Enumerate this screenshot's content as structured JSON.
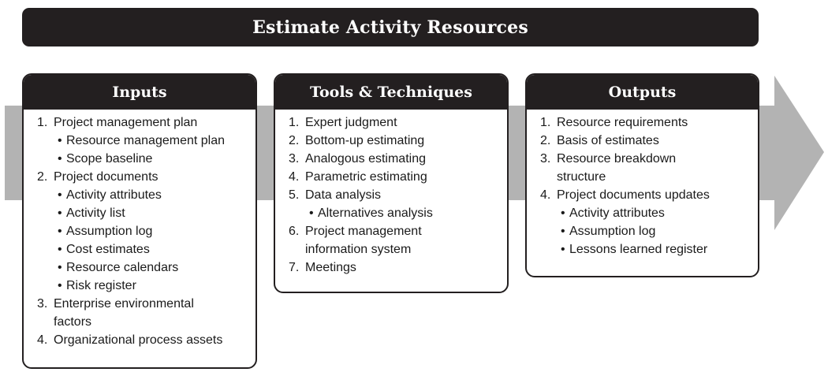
{
  "title": "Estimate Activity Resources",
  "colors": {
    "header_fill": "#231f20",
    "flow_arrow": "#b3b3b3",
    "box_fill": "#ffffff",
    "text": "#1a1a1a"
  },
  "inputs": {
    "title": "Inputs",
    "items": [
      {
        "num": "1.",
        "text": "Project management plan"
      },
      {
        "num": "•",
        "text": "Resource management plan"
      },
      {
        "num": "•",
        "text": "Scope baseline"
      },
      {
        "num": "2.",
        "text": "Project documents"
      },
      {
        "num": "•",
        "text": "Activity attributes"
      },
      {
        "num": "•",
        "text": "Activity list"
      },
      {
        "num": "•",
        "text": "Assumption log"
      },
      {
        "num": "•",
        "text": "Cost estimates"
      },
      {
        "num": "•",
        "text": "Resource calendars"
      },
      {
        "num": "•",
        "text": "Risk register"
      },
      {
        "num": "3.",
        "text": "Enterprise environmental"
      },
      {
        "num": "",
        "text": "factors"
      },
      {
        "num": "4.",
        "text": "Organizational process assets"
      }
    ]
  },
  "tools": {
    "title": "Tools & Techniques",
    "items": [
      {
        "num": "1.",
        "text": "Expert judgment"
      },
      {
        "num": "2.",
        "text": "Bottom-up estimating"
      },
      {
        "num": "3.",
        "text": "Analogous estimating"
      },
      {
        "num": "4.",
        "text": "Parametric estimating"
      },
      {
        "num": "5.",
        "text": "Data analysis"
      },
      {
        "num": "•",
        "text": "Alternatives analysis"
      },
      {
        "num": "6.",
        "text": "Project management"
      },
      {
        "num": "",
        "text": "information system"
      },
      {
        "num": "7.",
        "text": "Meetings"
      }
    ]
  },
  "outputs": {
    "title": "Outputs",
    "items": [
      {
        "num": "1.",
        "text": "Resource requirements"
      },
      {
        "num": "2.",
        "text": "Basis of estimates"
      },
      {
        "num": "3.",
        "text": "Resource breakdown"
      },
      {
        "num": "",
        "text": "structure"
      },
      {
        "num": "4.",
        "text": "Project documents updates"
      },
      {
        "num": "•",
        "text": "Activity attributes"
      },
      {
        "num": "•",
        "text": "Assumption log"
      },
      {
        "num": "•",
        "text": "Lessons learned register"
      }
    ]
  }
}
